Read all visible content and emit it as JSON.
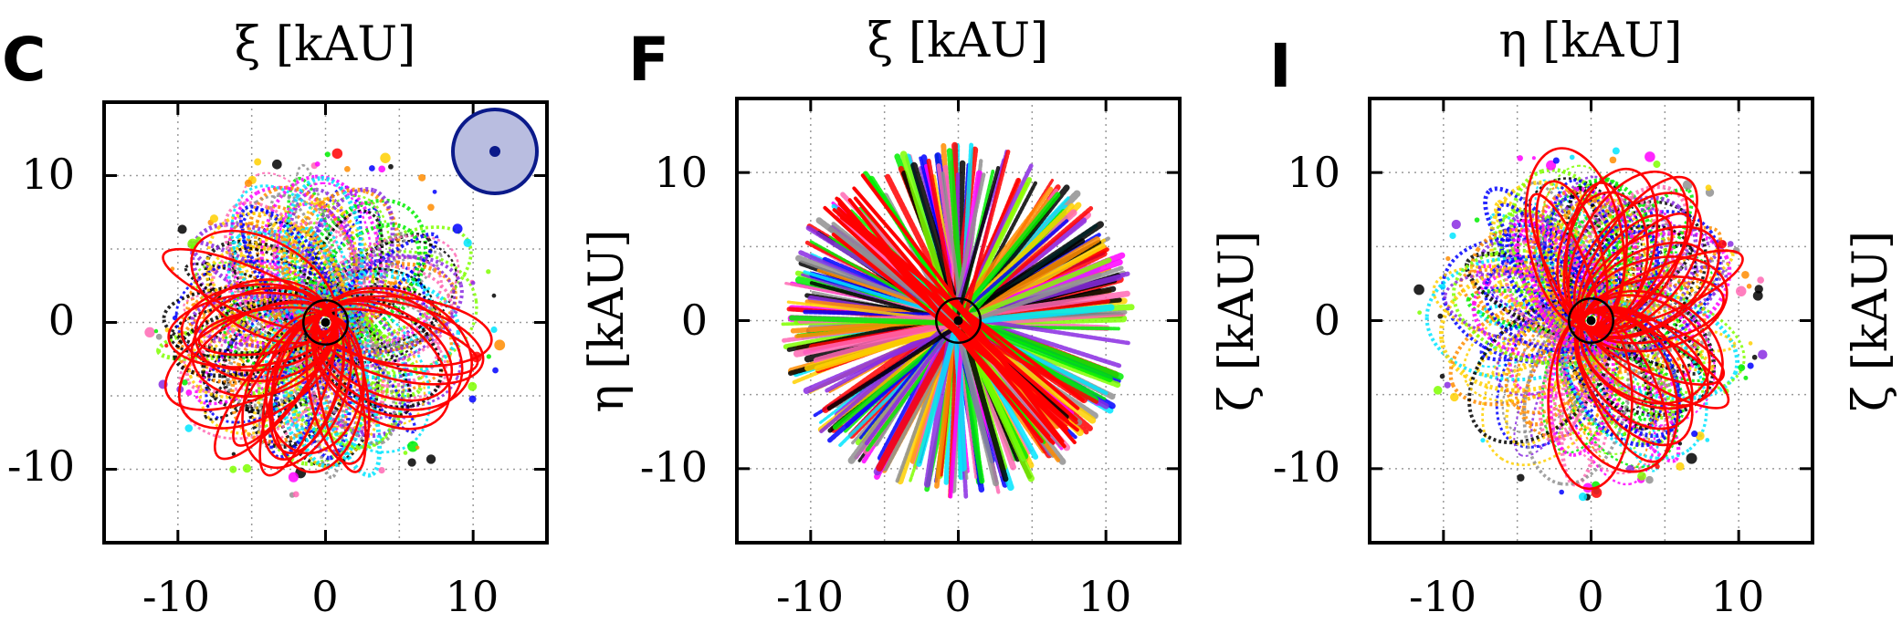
{
  "figure": {
    "orbit_palette": [
      "#ff0000",
      "#00ee00",
      "#0000ff",
      "#ff00ff",
      "#00e5ff",
      "#ffd000",
      "#000000",
      "#ff8c00",
      "#8a2be2",
      "#909090",
      "#ff69b4",
      "#7fff00"
    ],
    "highlight_color": "#ff0000",
    "inset_fill": "#b9bde0",
    "inset_stroke": "#0b1a8a"
  },
  "chart_data": [
    {
      "panel_label": "C",
      "type": "scatter",
      "xlabel": "ξ [kAU]",
      "ylabel": "",
      "xlim": [
        -15,
        15
      ],
      "ylim": [
        -15,
        15
      ],
      "xticks": [
        -10,
        0,
        10
      ],
      "yticks": [
        -10,
        0,
        10
      ],
      "x_tick_labels": [
        "-10",
        "0",
        "10"
      ],
      "y_tick_labels": [
        "10",
        "0",
        "-10"
      ],
      "y_axis_side": "left",
      "grid": true,
      "central_circle_radius_kau": 1.5,
      "orbit_disc_radius_kau": 12,
      "highlight_style": "ellipses",
      "has_inset": true
    },
    {
      "panel_label": "F",
      "type": "scatter",
      "xlabel": "ξ [kAU]",
      "ylabel": "η [kAU]",
      "xlim": [
        -15,
        15
      ],
      "ylim": [
        -15,
        15
      ],
      "xticks": [
        -10,
        0,
        10
      ],
      "yticks": [
        -10,
        0,
        10
      ],
      "x_tick_labels": [
        "-10",
        "0",
        "10"
      ],
      "y_tick_labels": [
        "10",
        "0",
        "-10"
      ],
      "y_axis_side": "left",
      "grid": true,
      "central_circle_radius_kau": 1.5,
      "orbit_disc_radius_kau": 12,
      "highlight_style": "rays",
      "has_inset": false
    },
    {
      "panel_label": "I",
      "type": "scatter",
      "xlabel": "η [kAU]",
      "ylabel": "ζ [kAU]",
      "xlim": [
        -15,
        15
      ],
      "ylim": [
        -15,
        15
      ],
      "xticks": [
        -10,
        0,
        10
      ],
      "yticks": [
        -10,
        0,
        10
      ],
      "x_tick_labels": [
        "-10",
        "0",
        "10"
      ],
      "y_tick_labels": [
        "10",
        "0",
        "-10"
      ],
      "y_axis_side": "left",
      "grid": true,
      "central_circle_radius_kau": 1.5,
      "orbit_disc_radius_kau": 12,
      "highlight_style": "ellipses",
      "has_inset": false
    },
    {
      "panel_label": "",
      "type": "scatter",
      "xlabel": "",
      "ylabel": "ζ [kAU]",
      "y_axis_side": "right-edge"
    }
  ]
}
